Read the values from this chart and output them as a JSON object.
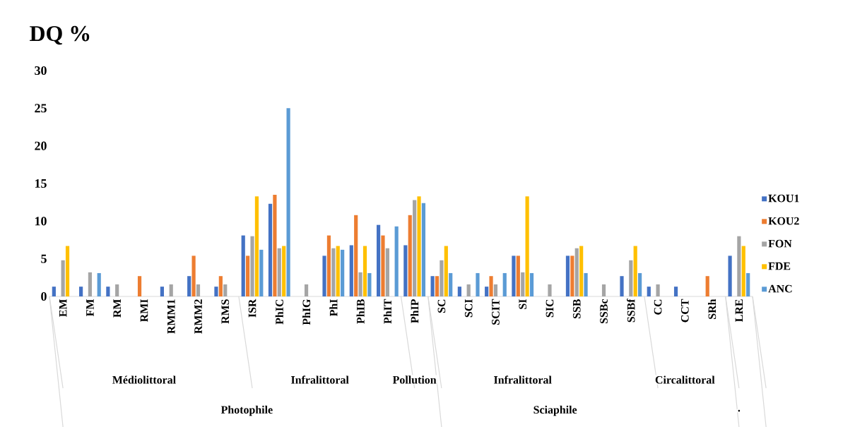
{
  "chart_data": {
    "type": "bar",
    "title": "DQ %",
    "categories": [
      "EM",
      "FM",
      "RM",
      "RMI",
      "RMM1",
      "RMM2",
      "RMS",
      "ISR",
      "PhIC",
      "PhIG",
      "PhI",
      "PhIB",
      "PhIT",
      "PhIP",
      "SC",
      "SCI",
      "SCIT",
      "SI",
      "SIC",
      "SSB",
      "SSBc",
      "SSBf",
      "CC",
      "CCT",
      "SRh",
      "LRE"
    ],
    "series": [
      {
        "name": "KOU1",
        "color": "#4472c4",
        "values": [
          1.3,
          1.3,
          1.3,
          0,
          1.3,
          2.7,
          1.3,
          8.1,
          12.3,
          0,
          5.4,
          6.8,
          9.5,
          6.8,
          2.7,
          1.3,
          1.3,
          5.4,
          0,
          5.4,
          0,
          2.7,
          1.3,
          1.3,
          0,
          5.4
        ]
      },
      {
        "name": "KOU2",
        "color": "#ed7d31",
        "values": [
          0,
          0,
          0,
          2.7,
          0,
          5.4,
          2.7,
          5.4,
          13.5,
          0,
          8.1,
          10.8,
          8.1,
          10.8,
          2.7,
          0,
          2.7,
          5.4,
          0,
          5.4,
          0,
          0,
          0,
          0,
          2.7,
          0
        ]
      },
      {
        "name": "FON",
        "color": "#a5a5a5",
        "values": [
          4.8,
          3.2,
          1.6,
          0,
          1.6,
          1.6,
          1.6,
          8.0,
          6.4,
          1.6,
          6.4,
          3.2,
          6.4,
          12.8,
          4.8,
          1.6,
          1.6,
          3.2,
          1.6,
          6.4,
          1.6,
          4.8,
          1.6,
          0,
          0,
          8.0
        ]
      },
      {
        "name": "FDE",
        "color": "#ffc000",
        "values": [
          6.7,
          0,
          0,
          0,
          0,
          0,
          0,
          13.3,
          6.7,
          0,
          6.7,
          6.7,
          0,
          13.3,
          6.7,
          0,
          0,
          13.3,
          0,
          6.7,
          0,
          6.7,
          0,
          0,
          0,
          6.7
        ]
      },
      {
        "name": "ANC",
        "color": "#5b9bd5",
        "values": [
          0,
          3.1,
          0,
          0,
          0,
          0,
          0,
          6.2,
          25.0,
          0,
          6.2,
          3.1,
          9.3,
          12.4,
          3.1,
          3.1,
          3.1,
          3.1,
          0,
          3.1,
          0,
          3.1,
          0,
          0,
          0,
          3.1
        ]
      }
    ],
    "ylim": [
      0,
      30
    ],
    "yticks": [
      0,
      5,
      10,
      15,
      20,
      25,
      30
    ],
    "legend": "right",
    "annotations": [
      "Médiolittoral",
      "Infralittoral",
      "Pollution",
      "Infralittoral",
      "Circalittoral",
      "Photophile",
      "Sciaphile",
      "."
    ]
  }
}
